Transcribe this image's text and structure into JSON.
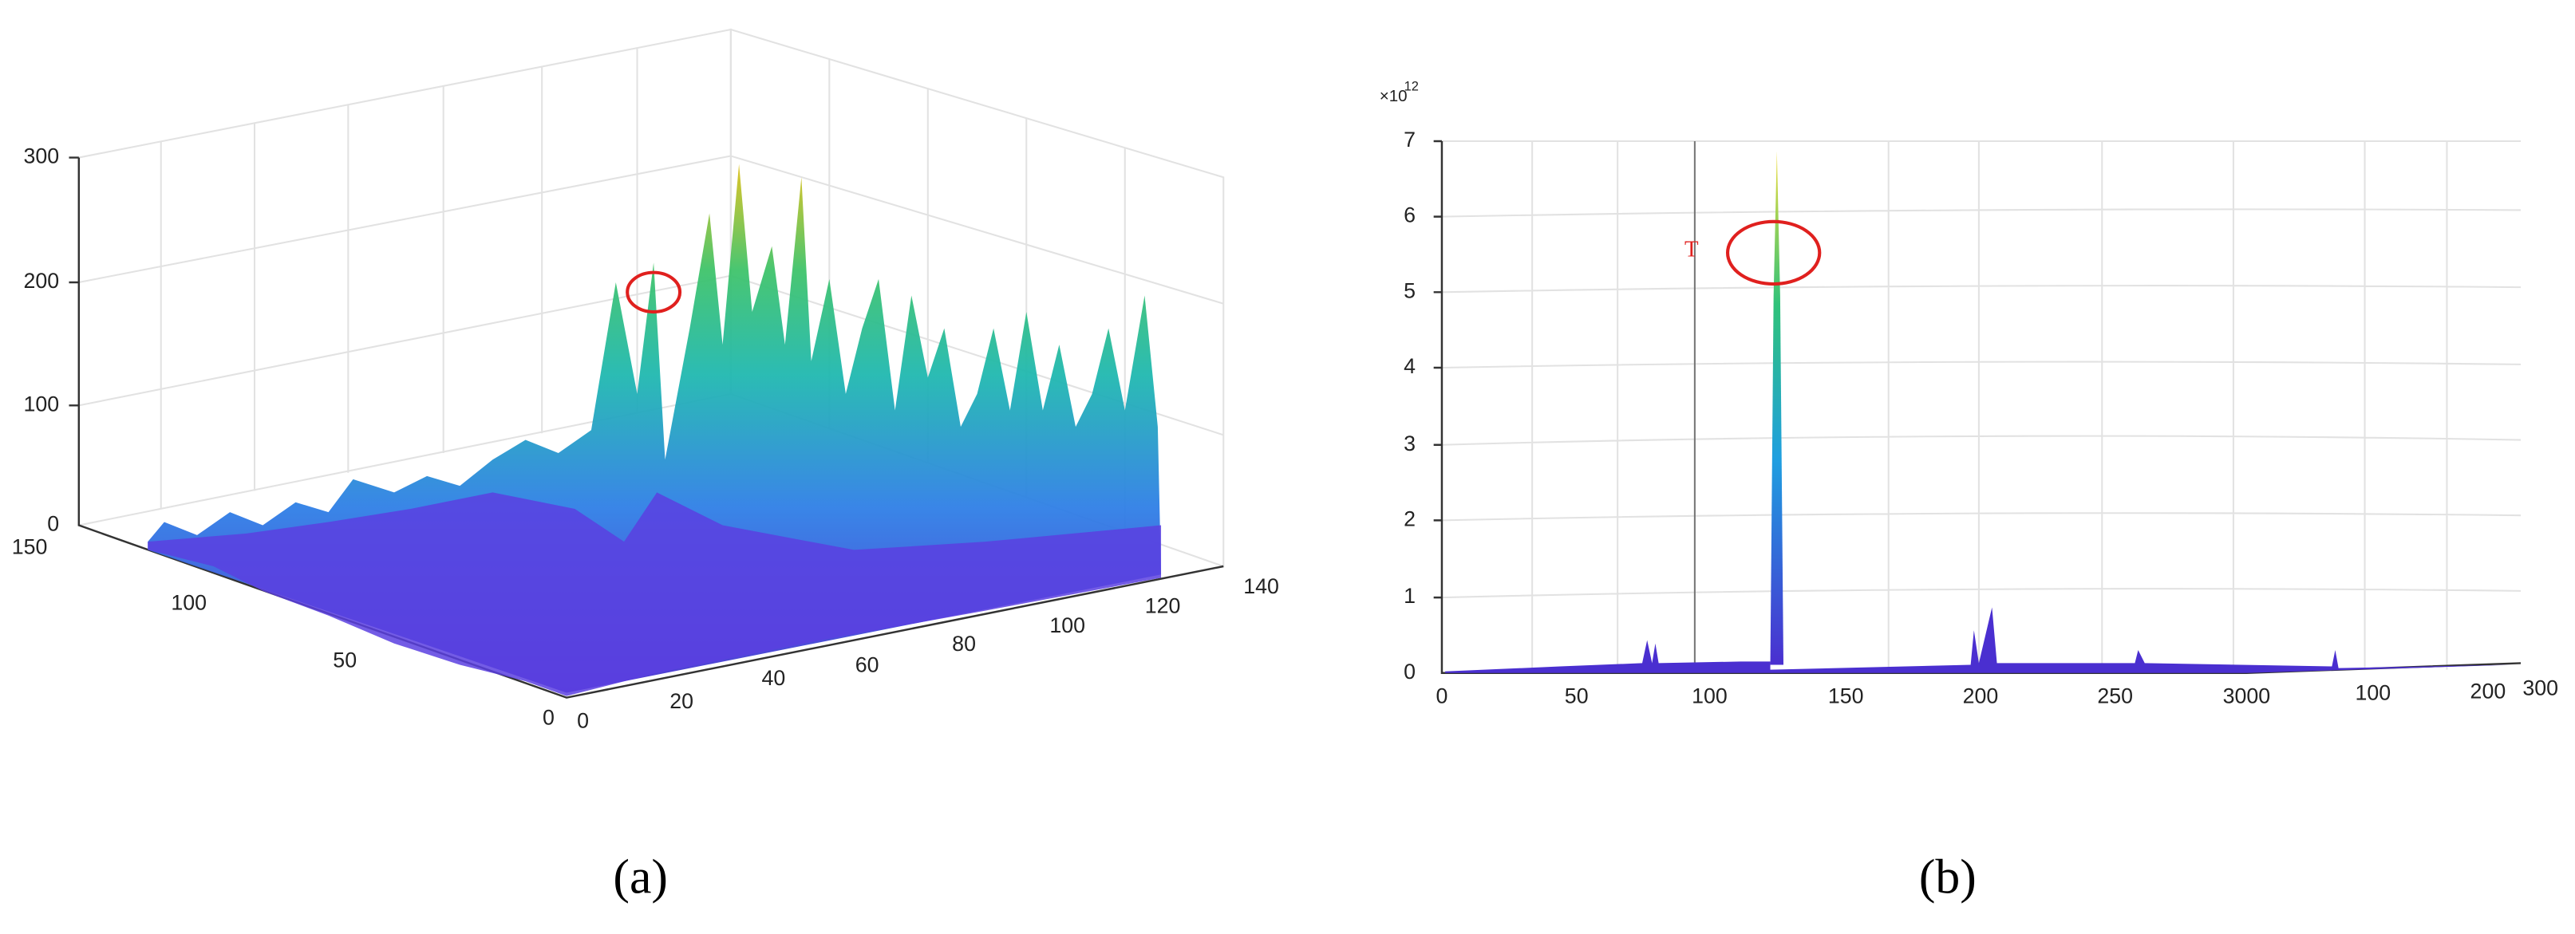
{
  "figure": {
    "panels": [
      {
        "caption": "(a)",
        "z_ticks": [
          "300",
          "200",
          "100",
          "0"
        ],
        "y_ticks": [
          "150",
          "100",
          "50",
          "0"
        ],
        "x_ticks": [
          "0",
          "20",
          "40",
          "60",
          "80",
          "100",
          "120",
          "140"
        ]
      },
      {
        "caption": "(b)",
        "exponent": "×10",
        "exponent_power": "12",
        "annotation": "T",
        "y_ticks": [
          "7",
          "6",
          "5",
          "4",
          "3",
          "2",
          "1",
          "0"
        ],
        "x_ticks": [
          "0",
          "50",
          "100",
          "150",
          "200",
          "250",
          "3000",
          "100",
          "200",
          "300"
        ]
      }
    ]
  }
}
